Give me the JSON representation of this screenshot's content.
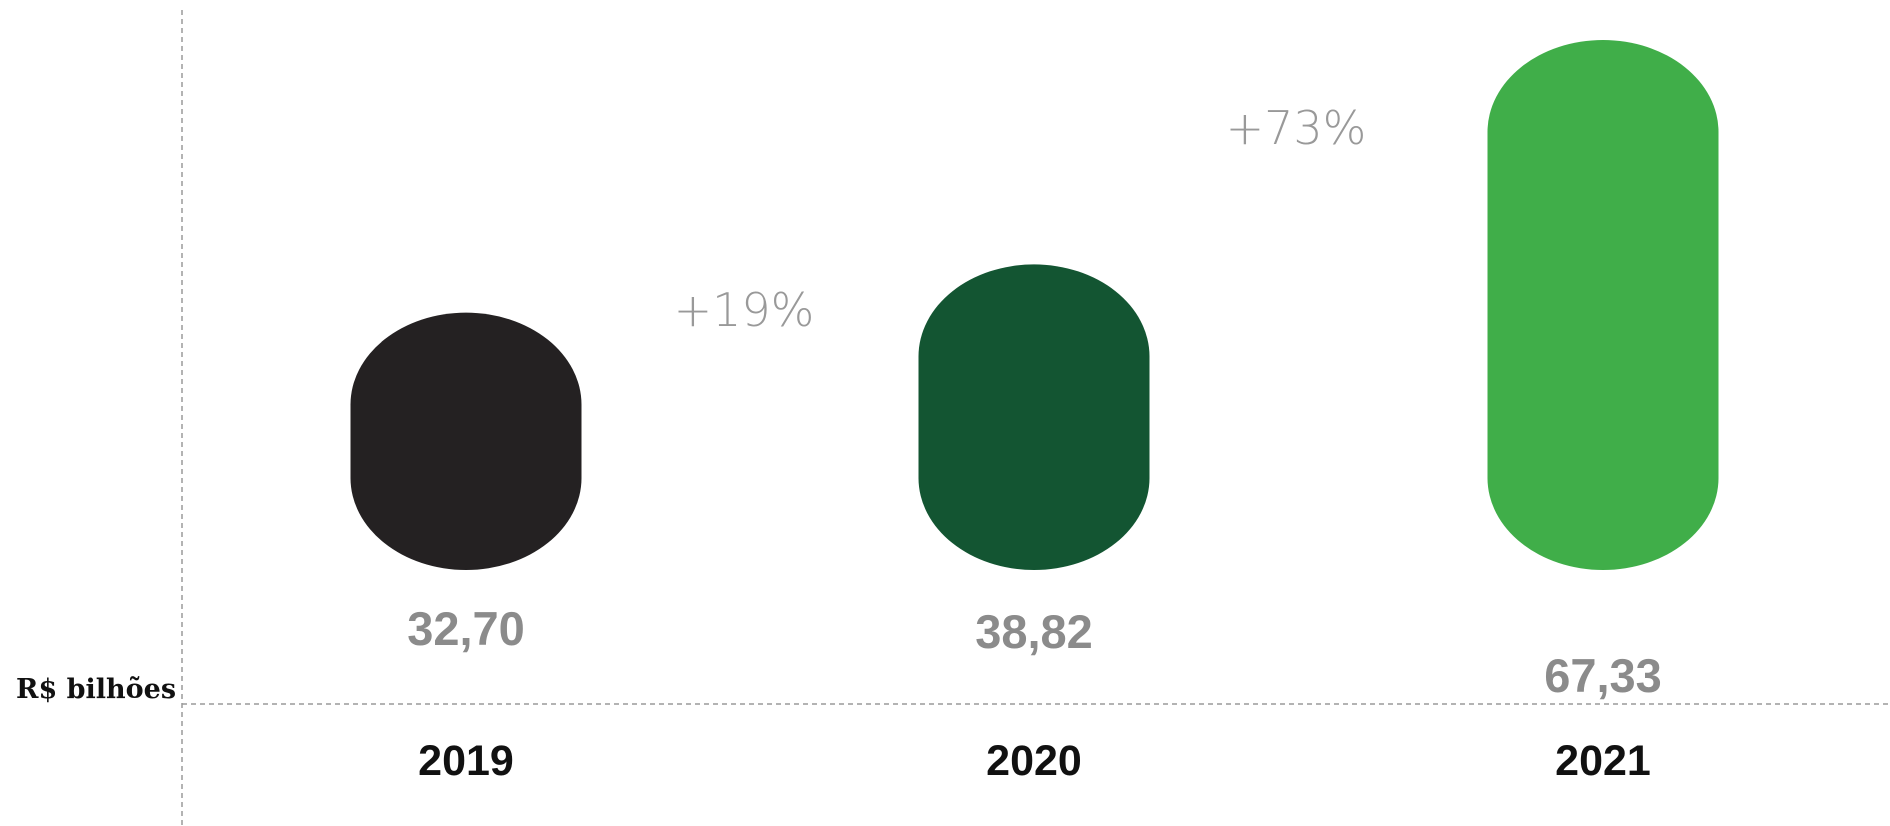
{
  "unit_label": "R$ bilhões",
  "chart_data": {
    "type": "bar",
    "categories": [
      "2019",
      "2020",
      "2021"
    ],
    "values": [
      32.7,
      38.82,
      67.33
    ],
    "value_labels": [
      "32,70",
      "38,82",
      "67,33"
    ],
    "bar_colors": [
      "#242122",
      "#135532",
      "#40ae49"
    ],
    "growth_labels": [
      {
        "between": [
          "2019",
          "2020"
        ],
        "label": "+19%"
      },
      {
        "between": [
          "2020",
          "2021"
        ],
        "label": "+73%"
      }
    ],
    "axis_label": "R$ bilhões",
    "ylim": [
      0,
      67.33
    ],
    "grid": false
  }
}
